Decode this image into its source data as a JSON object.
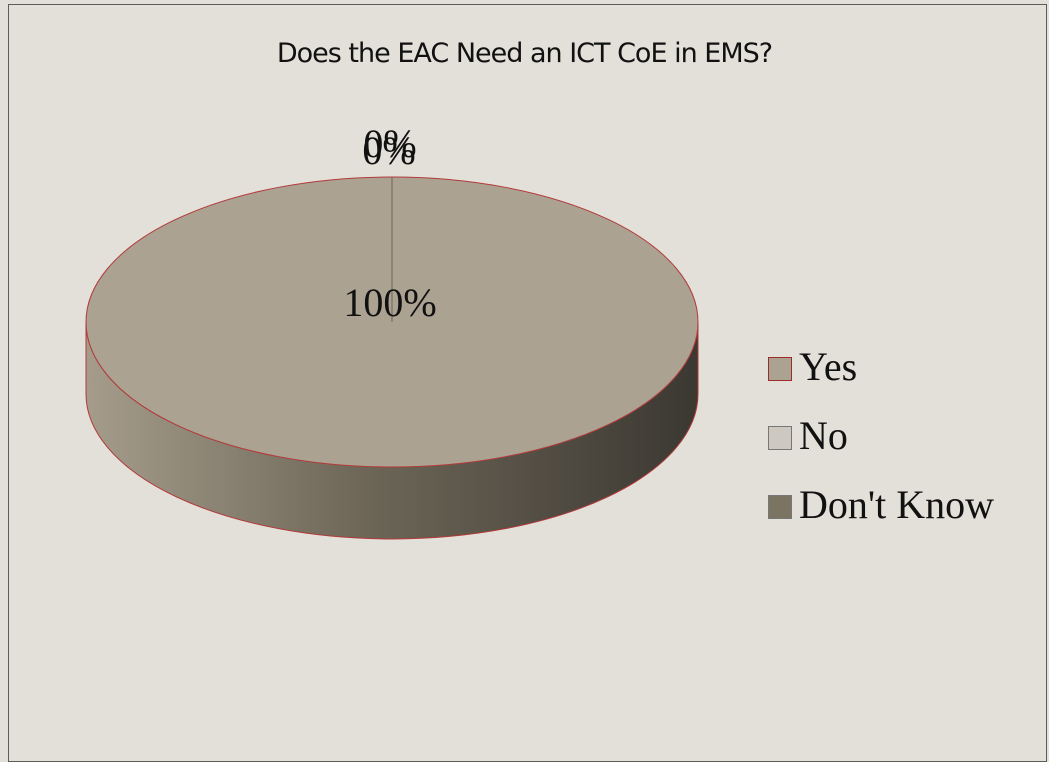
{
  "chart_data": {
    "type": "pie",
    "title": "Does the EAC Need an ICT CoE in EMS?",
    "labels": [
      "Yes",
      "No",
      "Don't Know"
    ],
    "values": [
      100,
      0,
      0
    ],
    "data_labels": [
      "100%",
      "0%",
      "0%"
    ],
    "colors": [
      "#aba291",
      "#cdc9c1",
      "#7b7463"
    ],
    "legend_placement": "right",
    "three_d": true
  }
}
